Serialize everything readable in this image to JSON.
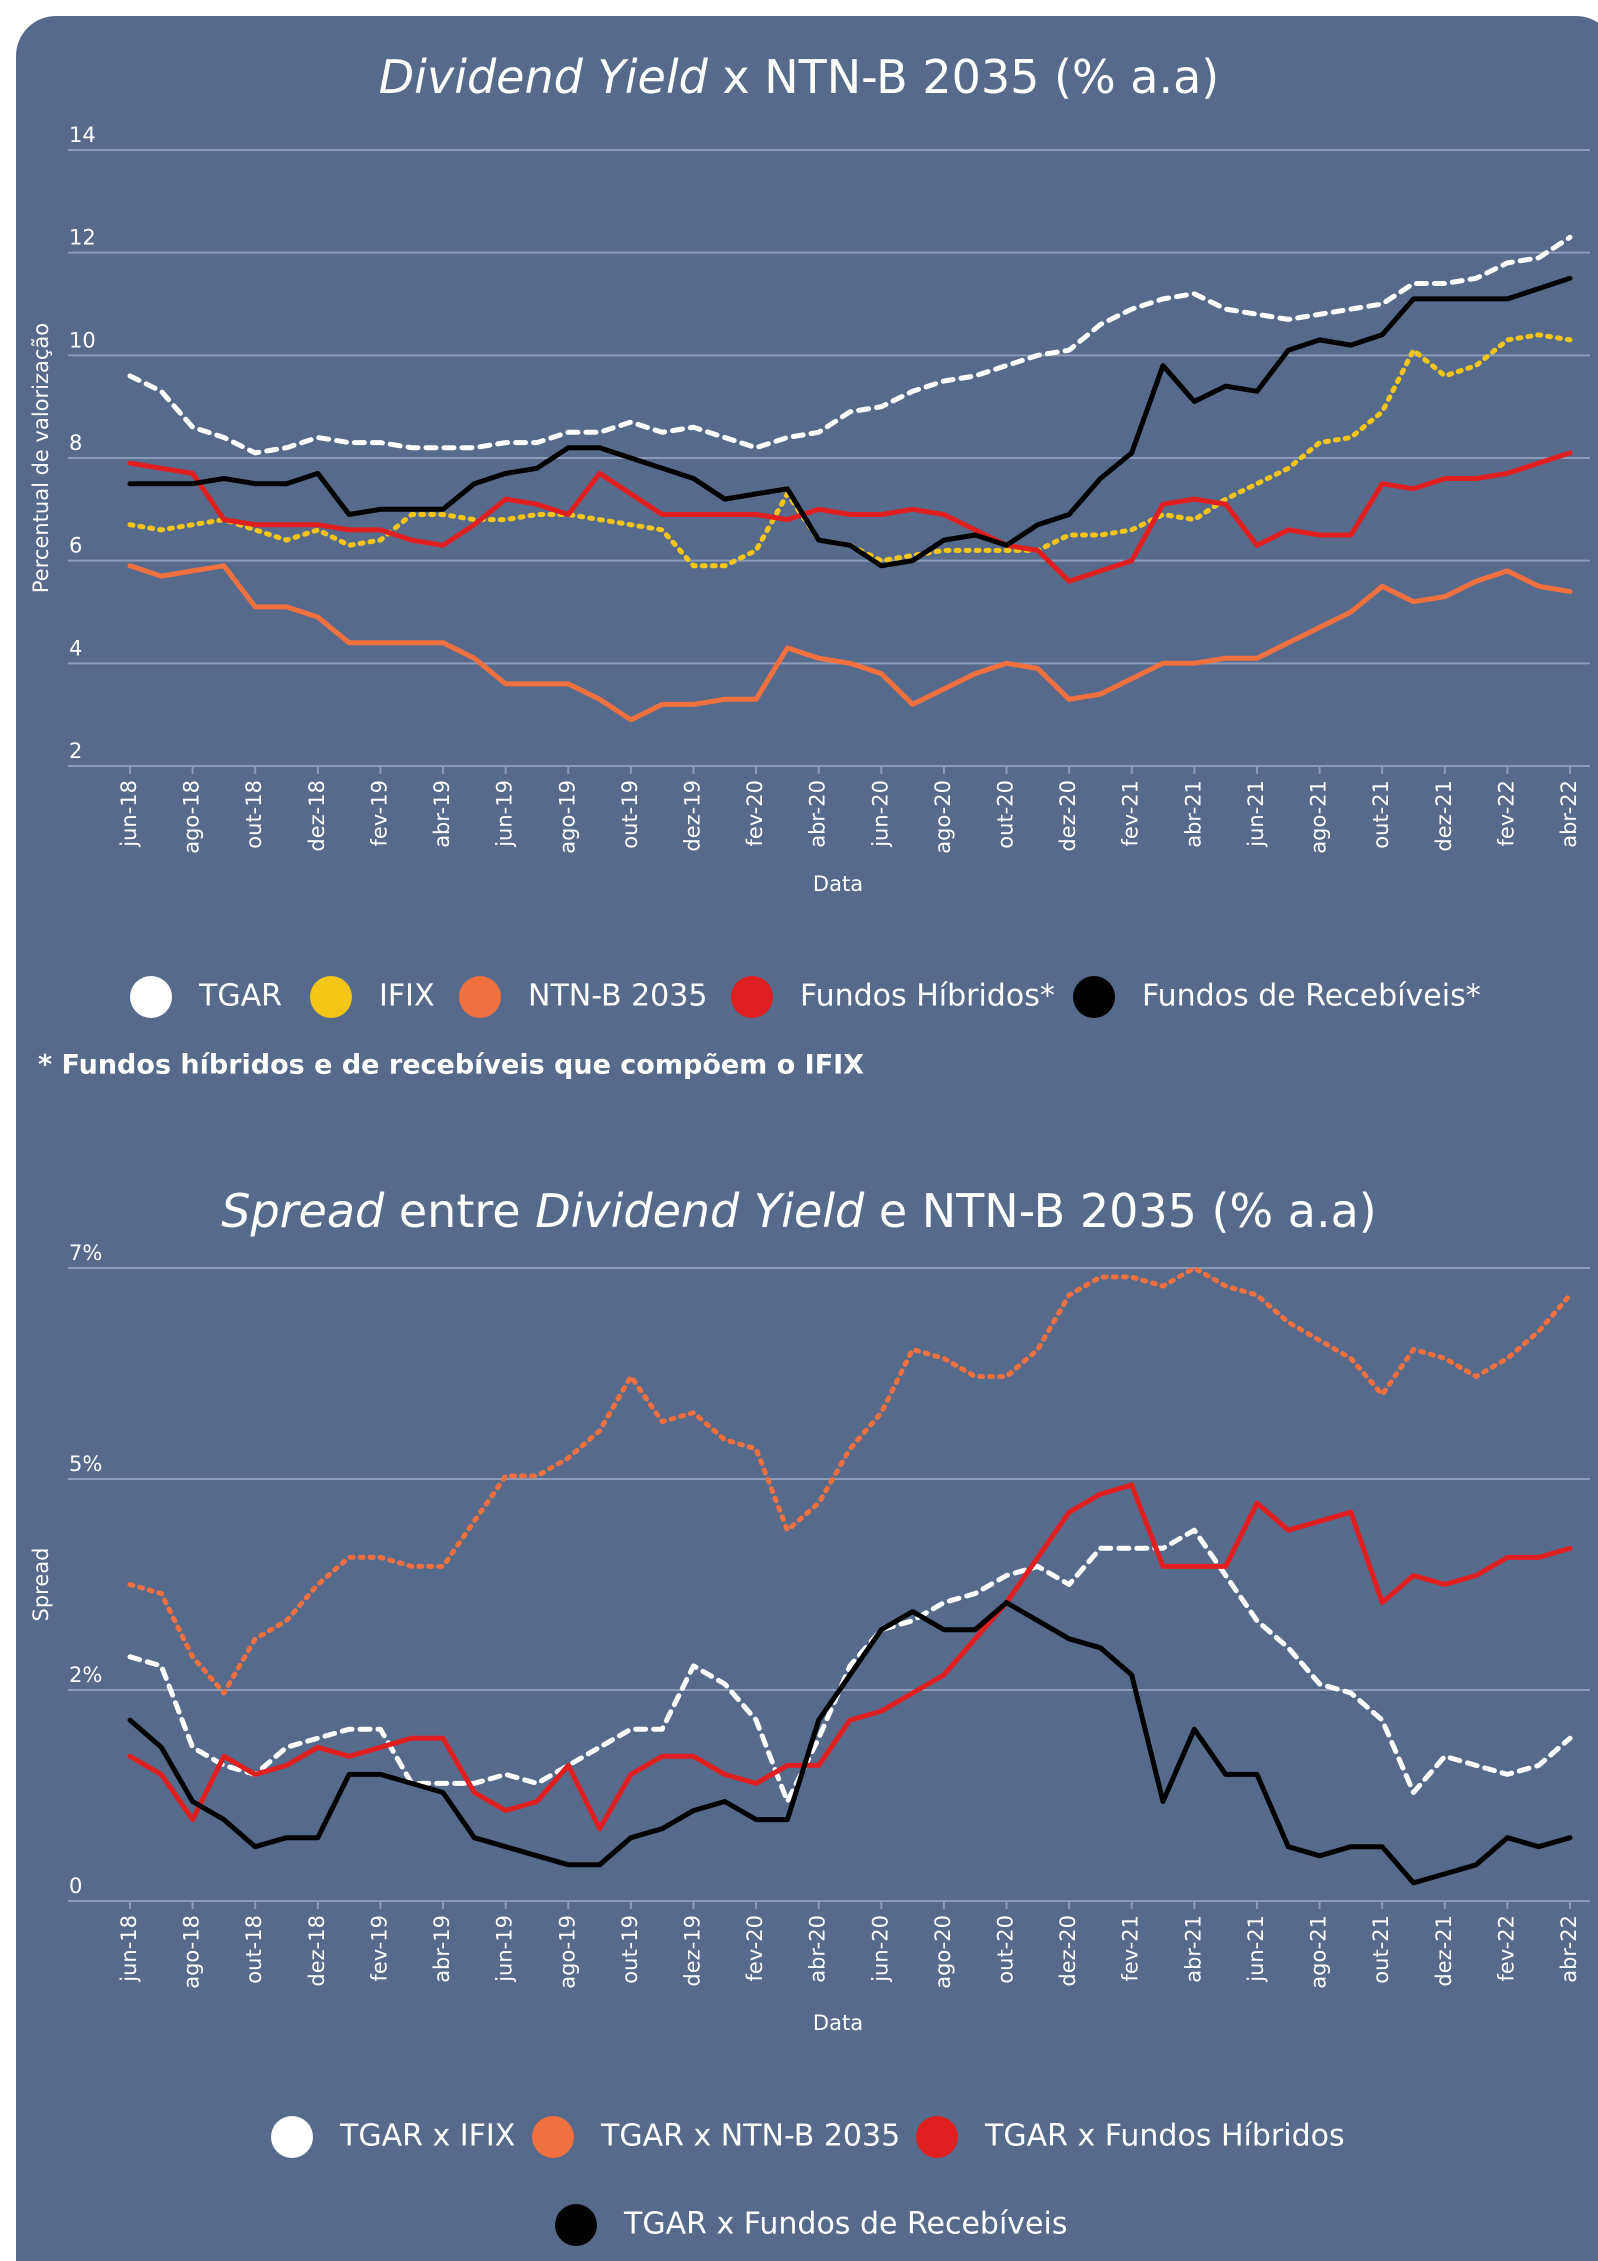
{
  "chart_data": [
    {
      "type": "line",
      "title": [
        {
          "text": "Dividend Yield",
          "italic": true
        },
        {
          "text": " x NTN-B 2035 (% a.a)",
          "italic": false
        }
      ],
      "x_label": "Data",
      "y_label": "Percentual de valorização",
      "note": "* Fundos híbridos e de recebíveis que compõem o IFIX",
      "categories": [
        "jun-18",
        null,
        "ago-18",
        null,
        "out-18",
        null,
        "dez-18",
        null,
        "fev-19",
        null,
        "abr-19",
        null,
        "jun-19",
        null,
        "ago-19",
        null,
        "out-19",
        null,
        "dez-19",
        null,
        "fev-20",
        null,
        "abr-20",
        null,
        "jun-20",
        null,
        "ago-20",
        null,
        "out-20",
        null,
        "dez-20",
        null,
        "fev-21",
        null,
        "abr-21",
        null,
        "jun-21",
        null,
        "ago-21",
        null,
        "out-21",
        null,
        "dez-21",
        null,
        "fev-22",
        null,
        "abr-22"
      ],
      "ylim": [
        2,
        14
      ],
      "yticks": [
        2,
        4,
        6,
        8,
        10,
        12,
        14
      ],
      "grid": true,
      "legend": "bottom",
      "series": [
        {
          "name": "TGAR",
          "color": "#ffffff",
          "dash": "dashed",
          "values": [
            9.6,
            9.3,
            8.6,
            8.4,
            8.1,
            8.2,
            8.4,
            8.3,
            8.3,
            8.2,
            8.2,
            8.2,
            8.3,
            8.3,
            8.5,
            8.5,
            8.7,
            8.5,
            8.6,
            8.4,
            8.2,
            8.4,
            8.5,
            8.9,
            9.0,
            9.3,
            9.5,
            9.6,
            9.8,
            10.0,
            10.1,
            10.6,
            10.9,
            11.1,
            11.2,
            10.9,
            10.8,
            10.7,
            10.8,
            10.9,
            11.0,
            11.4,
            11.4,
            11.5,
            11.8,
            11.9,
            12.3
          ]
        },
        {
          "name": "IFIX",
          "color": "#f5c518",
          "dash": "dotted",
          "values": [
            6.7,
            6.6,
            6.7,
            6.8,
            6.6,
            6.4,
            6.6,
            6.3,
            6.4,
            6.9,
            6.9,
            6.8,
            6.8,
            6.9,
            6.9,
            6.8,
            6.7,
            6.6,
            5.9,
            5.9,
            6.2,
            7.3,
            6.4,
            6.3,
            6.0,
            6.1,
            6.2,
            6.2,
            6.2,
            6.2,
            6.5,
            6.5,
            6.6,
            6.9,
            6.8,
            7.2,
            7.5,
            7.8,
            8.3,
            8.4,
            8.9,
            10.1,
            9.6,
            9.8,
            10.3,
            10.4,
            10.3
          ]
        },
        {
          "name": "NTN-B 2035",
          "color": "#f07040",
          "dash": "solid",
          "values": [
            5.9,
            5.7,
            5.8,
            5.9,
            5.1,
            5.1,
            4.9,
            4.4,
            4.4,
            4.4,
            4.4,
            4.1,
            3.6,
            3.6,
            3.6,
            3.3,
            2.9,
            3.2,
            3.2,
            3.3,
            3.3,
            4.3,
            4.1,
            4.0,
            3.8,
            3.2,
            3.5,
            3.8,
            4.0,
            3.9,
            3.3,
            3.4,
            3.7,
            4.0,
            4.0,
            4.1,
            4.1,
            4.4,
            4.7,
            5.0,
            5.5,
            5.2,
            5.3,
            5.6,
            5.8,
            5.5,
            5.4
          ]
        },
        {
          "name": "Fundos Híbridos*",
          "color": "#e02020",
          "dash": "solid",
          "values": [
            7.9,
            7.8,
            7.7,
            6.8,
            6.7,
            6.7,
            6.7,
            6.6,
            6.6,
            6.4,
            6.3,
            6.7,
            7.2,
            7.1,
            6.9,
            7.7,
            7.3,
            6.9,
            6.9,
            6.9,
            6.9,
            6.8,
            7.0,
            6.9,
            6.9,
            7.0,
            6.9,
            6.6,
            6.3,
            6.2,
            5.6,
            5.8,
            6.0,
            7.1,
            7.2,
            7.1,
            6.3,
            6.6,
            6.5,
            6.5,
            7.5,
            7.4,
            7.6,
            7.6,
            7.7,
            7.9,
            8.1
          ]
        },
        {
          "name": "Fundos de Recebíveis*",
          "color": "#000000",
          "dash": "solid",
          "values": [
            7.5,
            7.5,
            7.5,
            7.6,
            7.5,
            7.5,
            7.7,
            6.9,
            7.0,
            7.0,
            7.0,
            7.5,
            7.7,
            7.8,
            8.2,
            8.2,
            8.0,
            7.8,
            7.6,
            7.2,
            7.3,
            7.4,
            6.4,
            6.3,
            5.9,
            6.0,
            6.4,
            6.5,
            6.3,
            6.7,
            6.9,
            7.6,
            8.1,
            9.8,
            9.1,
            9.4,
            9.3,
            10.1,
            10.3,
            10.2,
            10.4,
            11.1,
            11.1,
            11.1,
            11.1,
            11.3,
            11.5
          ]
        }
      ]
    },
    {
      "type": "line",
      "title": [
        {
          "text": "Spread",
          "italic": true
        },
        {
          "text": " entre ",
          "italic": false
        },
        {
          "text": "Dividend Yield",
          "italic": true
        },
        {
          "text": " e NTN-B 2035 (% a.a)",
          "italic": false
        }
      ],
      "x_label": "Data",
      "y_label": "Spread",
      "categories": [
        "jun-18",
        null,
        "ago-18",
        null,
        "out-18",
        null,
        "dez-18",
        null,
        "fev-19",
        null,
        "abr-19",
        null,
        "jun-19",
        null,
        "ago-19",
        null,
        "out-19",
        null,
        "dez-19",
        null,
        "fev-20",
        null,
        "abr-20",
        null,
        "jun-20",
        null,
        "ago-20",
        null,
        "out-20",
        null,
        "dez-20",
        null,
        "fev-21",
        null,
        "abr-21",
        null,
        "jun-21",
        null,
        "ago-21",
        null,
        "out-21",
        null,
        "dez-21",
        null,
        "fev-22",
        null,
        "abr-22"
      ],
      "ylim": [
        0,
        7
      ],
      "yticks": [
        0,
        {
          "value": 2.333,
          "label": "2%"
        },
        {
          "value": 4.667,
          "label": "5%"
        },
        {
          "value": 7,
          "label": "7%"
        }
      ],
      "grid": true,
      "legend": "bottom",
      "series": [
        {
          "name": "TGAR x IFIX",
          "color": "#ffffff",
          "dash": "dashed",
          "values": [
            2.7,
            2.6,
            1.7,
            1.5,
            1.4,
            1.7,
            1.8,
            1.9,
            1.9,
            1.3,
            1.3,
            1.3,
            1.4,
            1.3,
            1.5,
            1.7,
            1.9,
            1.9,
            2.6,
            2.4,
            2.0,
            1.1,
            1.8,
            2.6,
            3.0,
            3.1,
            3.3,
            3.4,
            3.6,
            3.7,
            3.5,
            3.9,
            3.9,
            3.9,
            4.1,
            3.6,
            3.1,
            2.8,
            2.4,
            2.3,
            2.0,
            1.2,
            1.6,
            1.5,
            1.4,
            1.5,
            1.8
          ]
        },
        {
          "name": "TGAR x NTN-B 2035",
          "color": "#f07040",
          "dash": "dotted",
          "values": [
            3.5,
            3.4,
            2.7,
            2.3,
            2.9,
            3.1,
            3.5,
            3.8,
            3.8,
            3.7,
            3.7,
            4.2,
            4.7,
            4.7,
            4.9,
            5.2,
            5.8,
            5.3,
            5.4,
            5.1,
            5.0,
            4.1,
            4.4,
            5.0,
            5.4,
            6.1,
            6.0,
            5.8,
            5.8,
            6.1,
            6.7,
            6.9,
            6.9,
            6.8,
            7.0,
            6.8,
            6.7,
            6.4,
            6.2,
            6.0,
            5.6,
            6.1,
            6.0,
            5.8,
            6.0,
            6.3,
            6.7
          ]
        },
        {
          "name": "TGAR x Fundos Híbridos",
          "color": "#e02020",
          "dash": "solid",
          "values": [
            1.6,
            1.4,
            0.9,
            1.6,
            1.4,
            1.5,
            1.7,
            1.6,
            1.7,
            1.8,
            1.8,
            1.2,
            1.0,
            1.1,
            1.5,
            0.8,
            1.4,
            1.6,
            1.6,
            1.4,
            1.3,
            1.5,
            1.5,
            2.0,
            2.1,
            2.3,
            2.5,
            2.9,
            3.3,
            3.8,
            4.3,
            4.5,
            4.6,
            3.7,
            3.7,
            3.7,
            4.4,
            4.1,
            4.2,
            4.3,
            3.3,
            3.6,
            3.5,
            3.6,
            3.8,
            3.8,
            3.9
          ]
        },
        {
          "name": "TGAR x Fundos de Recebíveis",
          "color": "#000000",
          "dash": "solid",
          "values": [
            2.0,
            1.7,
            1.1,
            0.9,
            0.6,
            0.7,
            0.7,
            1.4,
            1.4,
            1.3,
            1.2,
            0.7,
            0.6,
            0.5,
            0.4,
            0.4,
            0.7,
            0.8,
            1.0,
            1.1,
            0.9,
            0.9,
            2.0,
            2.5,
            3.0,
            3.2,
            3.0,
            3.0,
            3.3,
            3.1,
            2.9,
            2.8,
            2.5,
            1.1,
            1.9,
            1.4,
            1.4,
            0.6,
            0.5,
            0.6,
            0.6,
            0.2,
            0.3,
            0.4,
            0.7,
            0.6,
            0.7
          ]
        }
      ]
    }
  ]
}
